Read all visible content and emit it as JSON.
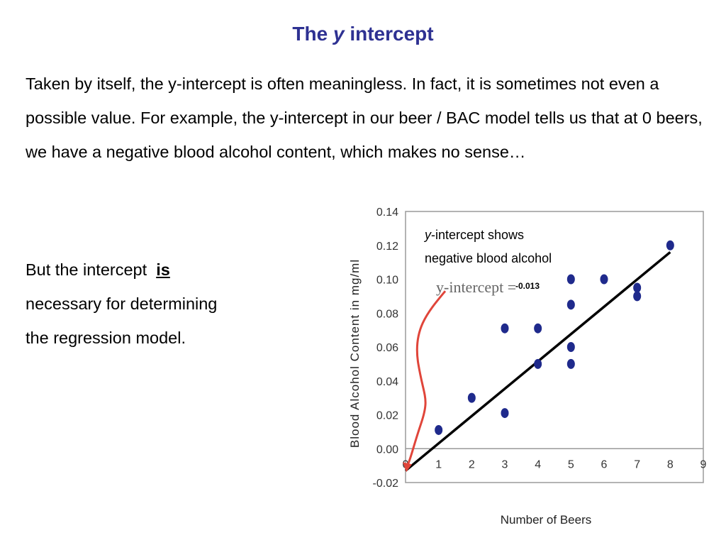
{
  "slide": {
    "title_pre": "The ",
    "title_var": "y",
    "title_post": " intercept",
    "paragraph": "Taken by itself, the y-intercept is often meaningless. In fact, it is sometimes not even a possible value.  For example, the y-intercept in our beer / BAC model tells us that at 0 beers, we have a negative blood alcohol content, which makes no sense…",
    "left_lines": [
      {
        "pre": "But the intercept  ",
        "emph": "is"
      },
      {
        "text": "necessary for determining"
      },
      {
        "text": "the regression model."
      }
    ]
  },
  "chart_data": {
    "type": "scatter",
    "xlabel": "Number of Beers",
    "ylabel": "Blood Alcohol Content in mg/ml",
    "xlim": [
      0,
      9
    ],
    "ylim": [
      -0.02,
      0.14
    ],
    "x_ticks": [
      "0",
      "1",
      "2",
      "3",
      "4",
      "5",
      "6",
      "7",
      "8",
      "9"
    ],
    "y_ticks": [
      "0.14",
      "0.12",
      "0.10",
      "0.08",
      "0.06",
      "0.04",
      "0.02",
      "0.00",
      "-0.02"
    ],
    "points": [
      {
        "x": 1,
        "y": 0.011
      },
      {
        "x": 2,
        "y": 0.03
      },
      {
        "x": 3,
        "y": 0.021
      },
      {
        "x": 3,
        "y": 0.071
      },
      {
        "x": 4,
        "y": 0.05
      },
      {
        "x": 4,
        "y": 0.071
      },
      {
        "x": 5,
        "y": 0.05
      },
      {
        "x": 5,
        "y": 0.06
      },
      {
        "x": 5,
        "y": 0.085
      },
      {
        "x": 5,
        "y": 0.1
      },
      {
        "x": 6,
        "y": 0.1
      },
      {
        "x": 7,
        "y": 0.09
      },
      {
        "x": 7,
        "y": 0.095
      },
      {
        "x": 8,
        "y": 0.12
      }
    ],
    "regression_line": {
      "x": [
        0,
        8
      ],
      "y": [
        -0.013,
        0.116
      ]
    },
    "annotations": {
      "shows_italic": "y",
      "shows_line1_rest": "-intercept shows",
      "shows_line2": "negative blood alcohol",
      "yint_label": "y-intercept =",
      "yint_value": "-0.013"
    },
    "colors": {
      "points": "#1F2A8C",
      "line": "#000000",
      "arrow": "#E0453A",
      "title": "#2E3192"
    }
  }
}
